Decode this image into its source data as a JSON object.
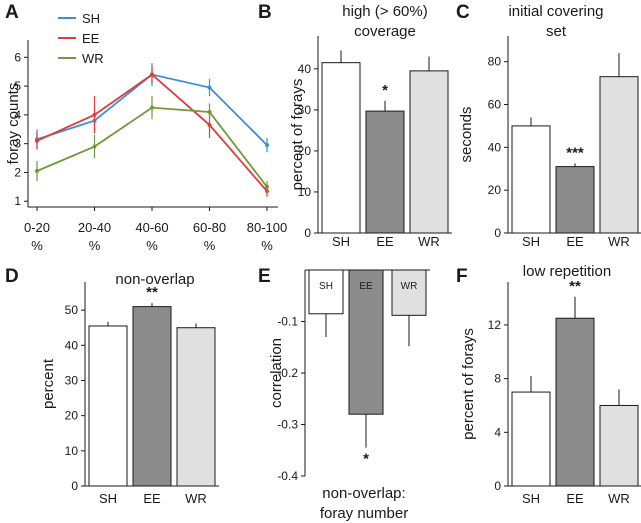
{
  "colors": {
    "SH": "#ffffff",
    "EE": "#8c8c8c",
    "WR": "#e0e0e0",
    "line_SH": "#3a8fdd",
    "line_EE": "#e23b3b",
    "line_WR": "#6f9a3a",
    "outline": "#1a1a1a"
  },
  "chart_data": [
    {
      "id": "A",
      "panel_label": "A",
      "type": "line",
      "title": "",
      "ylabel": "foray counts",
      "categories": [
        [
          "0-20",
          "%"
        ],
        [
          "20-40",
          "%"
        ],
        [
          "40-60",
          "%"
        ],
        [
          "60-80",
          "%"
        ],
        [
          "80-100",
          "%"
        ]
      ],
      "ylim": [
        0.8,
        6.6
      ],
      "yticks": [
        "1",
        "2",
        "3",
        "4",
        "5",
        "6"
      ],
      "legend": [
        {
          "name": "SH",
          "color": "#3a8fdd"
        },
        {
          "name": "EE",
          "color": "#e23b3b"
        },
        {
          "name": "WR",
          "color": "#6f9a3a"
        }
      ],
      "series": [
        {
          "name": "SH",
          "color": "#3a8fdd",
          "values": [
            3.15,
            3.8,
            5.4,
            4.95,
            2.95
          ],
          "errors": [
            0.35,
            0.4,
            0.4,
            0.3,
            0.25
          ]
        },
        {
          "name": "EE",
          "color": "#e23b3b",
          "values": [
            3.1,
            4.0,
            5.4,
            3.65,
            1.35
          ],
          "errors": [
            0.3,
            0.65,
            0.3,
            0.45,
            0.2
          ]
        },
        {
          "name": "WR",
          "color": "#6f9a3a",
          "values": [
            2.05,
            2.9,
            4.25,
            4.1,
            1.5
          ],
          "errors": [
            0.35,
            0.4,
            0.4,
            0.3,
            0.2
          ]
        }
      ]
    },
    {
      "id": "B",
      "panel_label": "B",
      "type": "bar",
      "title": [
        "high (> 60%)",
        "coverage"
      ],
      "ylabel": "percent of forays",
      "categories": [
        "SH",
        "EE",
        "WR"
      ],
      "values": [
        41.5,
        29.7,
        39.5
      ],
      "errors": [
        3.0,
        2.5,
        3.5
      ],
      "significance": [
        "",
        "*",
        ""
      ],
      "ylim": [
        0,
        48
      ],
      "yticks": [
        "0",
        "10",
        "20",
        "30",
        "40"
      ]
    },
    {
      "id": "C",
      "panel_label": "C",
      "type": "bar",
      "title": [
        "initial covering",
        "set"
      ],
      "ylabel": "seconds",
      "categories": [
        "SH",
        "EE",
        "WR"
      ],
      "values": [
        50,
        31,
        73
      ],
      "errors": [
        4,
        1.5,
        11
      ],
      "significance": [
        "",
        "***",
        ""
      ],
      "ylim": [
        0,
        92
      ],
      "yticks": [
        "0",
        "20",
        "40",
        "60",
        "80"
      ]
    },
    {
      "id": "D",
      "panel_label": "D",
      "type": "bar",
      "title": [
        "non-overlap"
      ],
      "ylabel": "percent",
      "categories": [
        "SH",
        "EE",
        "WR"
      ],
      "values": [
        45.5,
        51.0,
        45.0
      ],
      "errors": [
        1.2,
        1.0,
        1.2
      ],
      "significance": [
        "",
        "**",
        ""
      ],
      "ylim": [
        0,
        58
      ],
      "yticks": [
        "0",
        "10",
        "20",
        "30",
        "40",
        "50"
      ]
    },
    {
      "id": "E",
      "panel_label": "E",
      "type": "bar",
      "title": [],
      "ylabel": "correlation",
      "xlabel": [
        "non-overlap:",
        "foray number"
      ],
      "categories": [
        "SH",
        "EE",
        "WR"
      ],
      "values": [
        -0.085,
        -0.28,
        -0.088
      ],
      "errors": [
        0.045,
        0.065,
        0.06
      ],
      "significance": [
        "",
        "*",
        ""
      ],
      "ylim": [
        -0.4,
        0
      ],
      "yticks": [
        "-0.1",
        "-0.2",
        "-0.3",
        "-0.4"
      ]
    },
    {
      "id": "F",
      "panel_label": "F",
      "type": "bar",
      "title": [
        "low repetition"
      ],
      "ylabel": "percent of forays",
      "categories": [
        "SH",
        "EE",
        "WR"
      ],
      "values": [
        7.0,
        12.5,
        6.0
      ],
      "errors": [
        1.2,
        1.6,
        1.2
      ],
      "significance": [
        "",
        "**",
        ""
      ],
      "ylim": [
        0,
        15.2
      ],
      "yticks": [
        "0",
        "4",
        "8",
        "12"
      ]
    }
  ]
}
